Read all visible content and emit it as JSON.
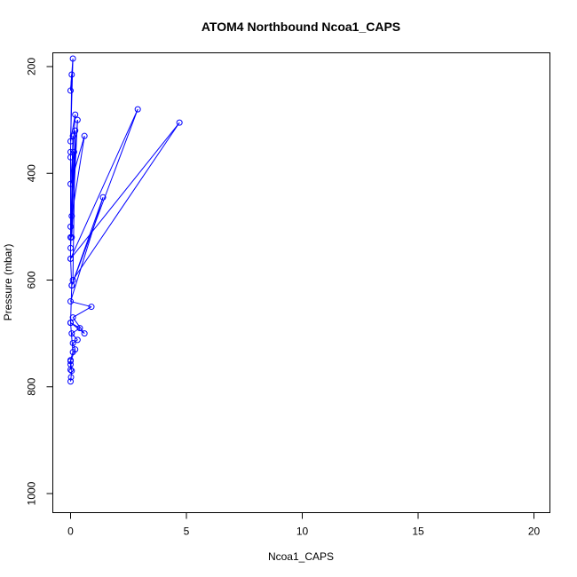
{
  "chart_data": {
    "type": "line",
    "title": "ATOM4 Northbound Ncoa1_CAPS",
    "xlabel": "Ncoa1_CAPS",
    "ylabel": "Pressure (mbar)",
    "xlim": [
      0,
      20
    ],
    "ylim": [
      1030,
      180
    ],
    "y_reversed": true,
    "grid": false,
    "x_ticks": [
      0,
      5,
      10,
      15,
      20
    ],
    "x_tick_labels": [
      "0",
      "5",
      "10",
      "15",
      "20"
    ],
    "y_ticks": [
      200,
      400,
      600,
      800,
      1000
    ],
    "y_tick_labels": [
      "200",
      "400",
      "600",
      "800",
      "1000"
    ],
    "color": "#0000ff",
    "series": [
      {
        "x": [
          0.0,
          0.02,
          0.05,
          0.0,
          0.2,
          0.1,
          0.3,
          0.05,
          0.4,
          0.0,
          0.6,
          0.1,
          0.9,
          0.0,
          1.4,
          0.05,
          2.9,
          0.0,
          4.7,
          0.1,
          0.2,
          0.0,
          0.1,
          0.05,
          0.3,
          0.0,
          0.15,
          0.05,
          0.6,
          0.0,
          0.2,
          0.0,
          0.1,
          0.0,
          0.05,
          0.0,
          0.0,
          0.0,
          0.0,
          0.05,
          0.0,
          0.1,
          0.0,
          0.0,
          0.0
        ],
        "y": [
          790,
          782,
          770,
          752,
          730,
          718,
          712,
          700,
          690,
          680,
          700,
          670,
          650,
          640,
          445,
          610,
          280,
          560,
          305,
          600,
          320,
          540,
          330,
          520,
          300,
          500,
          360,
          480,
          330,
          420,
          290,
          340,
          185,
          245,
          215,
          360,
          370,
          520,
          560,
          610,
          680,
          735,
          750,
          758,
          768
        ]
      }
    ]
  }
}
